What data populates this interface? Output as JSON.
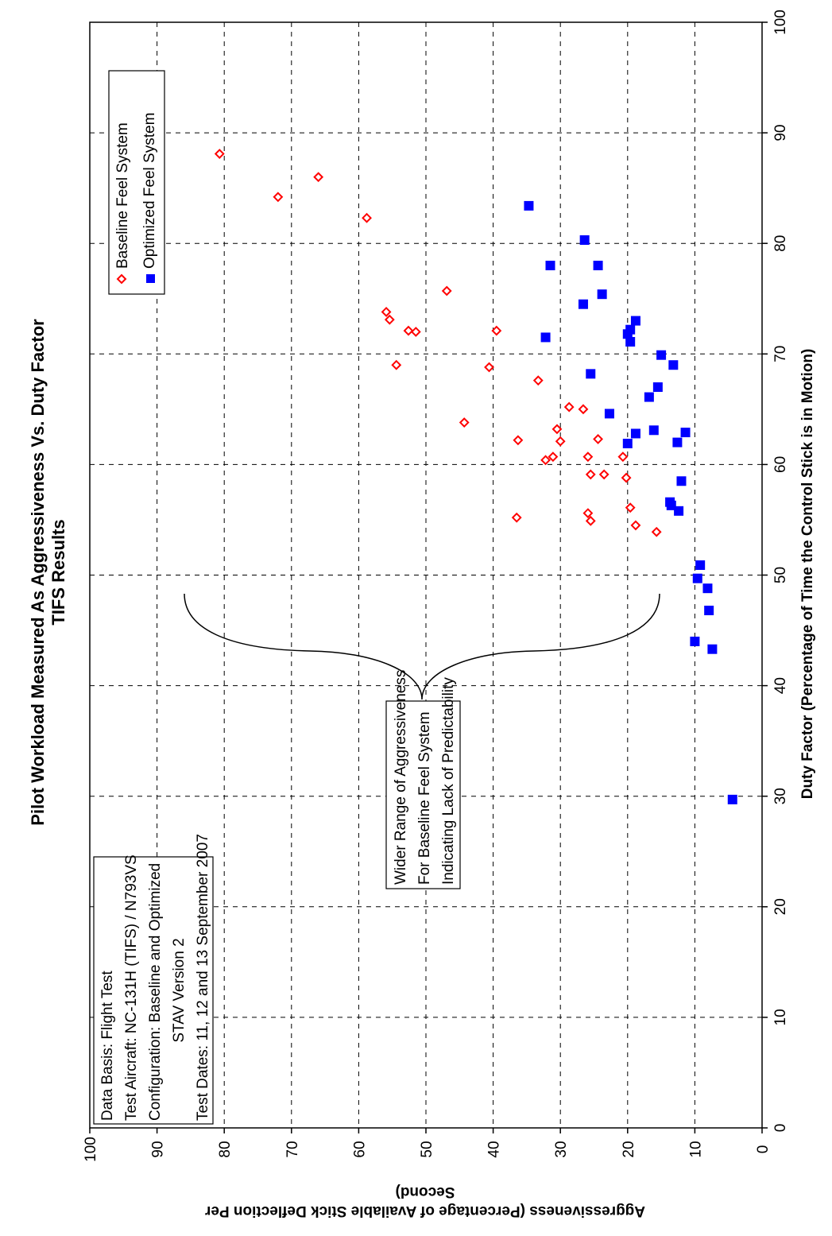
{
  "chart_data": {
    "type": "scatter",
    "title_lines": [
      "Pilot Workload Measured As Aggressiveness Vs. Duty Factor",
      "TIFS Results"
    ],
    "xlabel": "Duty Factor (Percentage of Time the Control Stick is in Motion)",
    "ylabel_lines": [
      "Aggressiveness (Percentage of Available Stick Deflection Per",
      "Second)"
    ],
    "xlim": [
      0,
      100
    ],
    "ylim": [
      0,
      100
    ],
    "x_ticks": [
      "0",
      "10",
      "20",
      "30",
      "40",
      "50",
      "60",
      "70",
      "80",
      "90",
      "100"
    ],
    "y_ticks": [
      "0",
      "10",
      "20",
      "30",
      "40",
      "50",
      "60",
      "70",
      "80",
      "90",
      "100"
    ],
    "grid": true,
    "legend": {
      "position": "top-right"
    },
    "series": [
      {
        "name": "Baseline Feel System",
        "marker": "diamond-open",
        "color": "#ff0000",
        "points": [
          [
            88.1,
            80.7
          ],
          [
            84.2,
            72.0
          ],
          [
            86.0,
            66.0
          ],
          [
            82.3,
            58.8
          ],
          [
            75.7,
            46.9
          ],
          [
            73.8,
            55.9
          ],
          [
            73.1,
            55.4
          ],
          [
            72.1,
            52.6
          ],
          [
            72.0,
            51.5
          ],
          [
            69.0,
            54.4
          ],
          [
            72.1,
            39.5
          ],
          [
            68.8,
            40.6
          ],
          [
            67.6,
            33.3
          ],
          [
            65.2,
            28.7
          ],
          [
            65.0,
            26.6
          ],
          [
            63.8,
            44.3
          ],
          [
            63.2,
            30.5
          ],
          [
            62.2,
            36.3
          ],
          [
            62.1,
            30.0
          ],
          [
            62.3,
            24.4
          ],
          [
            60.7,
            31.1
          ],
          [
            60.4,
            32.2
          ],
          [
            60.7,
            25.9
          ],
          [
            60.7,
            20.7
          ],
          [
            59.1,
            25.5
          ],
          [
            59.1,
            23.5
          ],
          [
            58.8,
            20.2
          ],
          [
            56.1,
            19.6
          ],
          [
            55.6,
            25.9
          ],
          [
            55.2,
            36.5
          ],
          [
            54.9,
            25.5
          ],
          [
            54.5,
            18.8
          ],
          [
            53.9,
            15.7
          ]
        ]
      },
      {
        "name": "Optimized Feel System",
        "marker": "square-filled",
        "color": "#0000ff",
        "points": [
          [
            83.4,
            34.7
          ],
          [
            80.3,
            26.4
          ],
          [
            78.0,
            31.5
          ],
          [
            78.0,
            24.4
          ],
          [
            75.4,
            23.8
          ],
          [
            74.5,
            26.6
          ],
          [
            73.0,
            18.8
          ],
          [
            72.2,
            19.6
          ],
          [
            71.8,
            20.0
          ],
          [
            71.1,
            19.6
          ],
          [
            71.5,
            32.2
          ],
          [
            69.9,
            15.0
          ],
          [
            69.0,
            13.2
          ],
          [
            68.2,
            25.5
          ],
          [
            67.0,
            15.5
          ],
          [
            66.1,
            16.8
          ],
          [
            64.6,
            22.7
          ],
          [
            63.1,
            16.1
          ],
          [
            62.9,
            11.4
          ],
          [
            62.8,
            18.8
          ],
          [
            62.0,
            12.6
          ],
          [
            61.9,
            20.0
          ],
          [
            58.5,
            12.0
          ],
          [
            56.6,
            13.7
          ],
          [
            56.3,
            13.5
          ],
          [
            55.8,
            12.4
          ],
          [
            50.9,
            9.2
          ],
          [
            49.7,
            9.6
          ],
          [
            48.8,
            8.1
          ],
          [
            46.8,
            7.9
          ],
          [
            44.0,
            10.0
          ],
          [
            43.3,
            7.4
          ],
          [
            29.7,
            4.4
          ]
        ]
      }
    ],
    "annotations": {
      "info_box_lines": [
        "Data Basis: Flight Test",
        "Test Aircraft: NC-131H (TIFS) / N793VS",
        "Configuration: Baseline and Optimized",
        "STAV Version 2",
        "Test Dates: 11, 12 and 13 September 2007"
      ],
      "bracket_note_lines": [
        "Wider Range of Aggressiveness",
        "For Baseline Feel System",
        "Indicating Lack of Predictability"
      ]
    }
  }
}
